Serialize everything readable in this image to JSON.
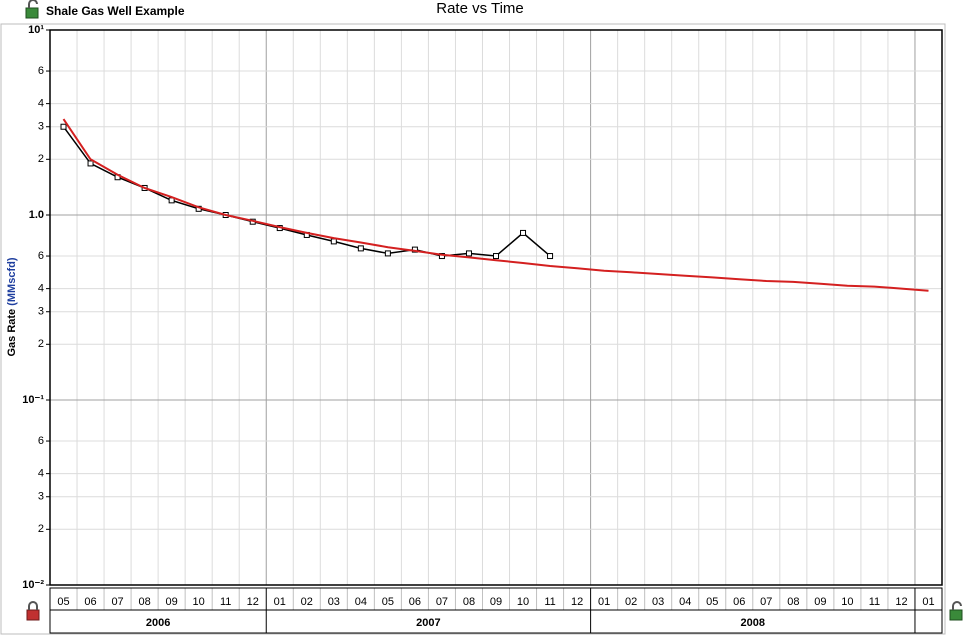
{
  "chart_data": {
    "type": "line",
    "title": "Rate vs Time",
    "subtitle": "Shale Gas Well Example",
    "y_label": "Gas Rate",
    "y_unit": "(MMscfd)",
    "log_y": true,
    "grid": true,
    "ylim": [
      0.01,
      10
    ],
    "yticks": [
      {
        "value": 10,
        "label": "10¹"
      },
      6,
      4,
      3,
      2,
      {
        "value": 1,
        "label": "1.0"
      },
      {
        "value": 0.6,
        "label": "6"
      },
      {
        "value": 0.4,
        "label": "4"
      },
      {
        "value": 0.3,
        "label": "3"
      },
      {
        "value": 0.2,
        "label": "2"
      },
      {
        "value": 0.1,
        "label": "10⁻¹"
      },
      {
        "value": 0.06,
        "label": "6"
      },
      {
        "value": 0.04,
        "label": "4"
      },
      {
        "value": 0.03,
        "label": "3"
      },
      {
        "value": 0.02,
        "label": "2"
      },
      {
        "value": 0.01,
        "label": "10⁻²"
      }
    ],
    "xlim": [
      "2006-05",
      "2009-01"
    ],
    "month_labels": [
      "05",
      "06",
      "07",
      "08",
      "09",
      "10",
      "11",
      "12",
      "01",
      "02",
      "03",
      "04",
      "05",
      "06",
      "07",
      "08",
      "09",
      "10",
      "11",
      "12",
      "01",
      "02",
      "03",
      "04",
      "05",
      "06",
      "07",
      "08",
      "09",
      "10",
      "11",
      "12",
      "01"
    ],
    "year_labels": [
      "2006",
      "2007",
      "2008"
    ],
    "series": [
      {
        "color": "#000000",
        "marker": "square",
        "x": [
          "2006-05",
          "2006-06",
          "2006-07",
          "2006-08",
          "2006-09",
          "2006-10",
          "2006-11",
          "2006-12",
          "2007-01",
          "2007-02",
          "2007-03",
          "2007-04",
          "2007-05",
          "2007-06",
          "2007-07",
          "2007-08",
          "2007-09",
          "2007-10",
          "2007-11"
        ],
        "values": [
          3.0,
          1.9,
          1.6,
          1.4,
          1.2,
          1.08,
          1.0,
          0.92,
          0.85,
          0.78,
          0.72,
          0.66,
          0.62,
          0.65,
          0.6,
          0.62,
          0.6,
          0.8,
          0.6
        ]
      },
      {
        "color": "#d42020",
        "marker": "none",
        "x": [
          "2006-05",
          "2006-06",
          "2006-07",
          "2006-08",
          "2006-09",
          "2006-10",
          "2006-11",
          "2006-12",
          "2007-01",
          "2007-02",
          "2007-03",
          "2007-04",
          "2007-05",
          "2007-06",
          "2007-07",
          "2007-08",
          "2007-09",
          "2007-10",
          "2007-11",
          "2007-12",
          "2008-01",
          "2008-02",
          "2008-03",
          "2008-04",
          "2008-05",
          "2008-06",
          "2008-07",
          "2008-08",
          "2008-09",
          "2008-10",
          "2008-11",
          "2008-12",
          "2009-01"
        ],
        "values": [
          3.3,
          2.0,
          1.65,
          1.4,
          1.25,
          1.1,
          1.0,
          0.93,
          0.86,
          0.8,
          0.75,
          0.71,
          0.67,
          0.64,
          0.61,
          0.59,
          0.57,
          0.55,
          0.53,
          0.515,
          0.5,
          0.49,
          0.48,
          0.47,
          0.46,
          0.45,
          0.44,
          0.435,
          0.425,
          0.415,
          0.41,
          0.4,
          0.39
        ]
      }
    ]
  }
}
